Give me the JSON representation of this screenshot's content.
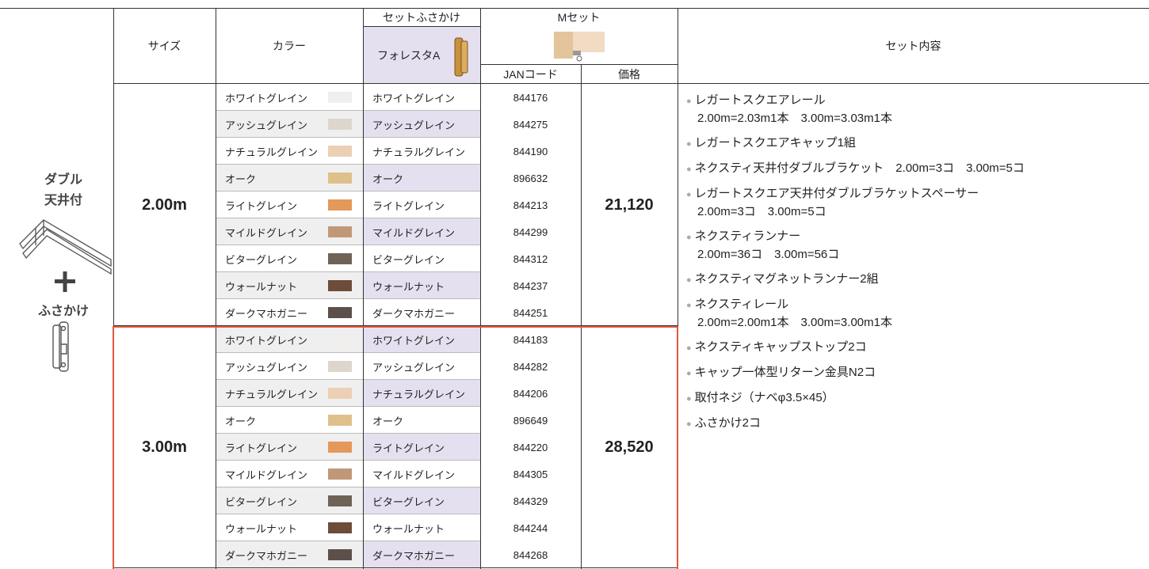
{
  "side": {
    "line1": "ダブル",
    "line2": "天井付",
    "accessory": "ふさかけ"
  },
  "table": {
    "headers": {
      "size": "サイズ",
      "color": "カラー",
      "set_fusakake": "セットふさかけ",
      "foresta": "フォレスタA",
      "m_set": "Mセット",
      "jan": "JANコード",
      "price": "価格",
      "contents": "セット内容"
    },
    "groups": [
      {
        "size": "2.00m",
        "price": "21,120",
        "rows": [
          {
            "color": "ホワイトグレイン",
            "fusakake": "ホワイトグレイン",
            "jan": "844176"
          },
          {
            "color": "アッシュグレイン",
            "fusakake": "アッシュグレイン",
            "jan": "844275"
          },
          {
            "color": "ナチュラルグレイン",
            "fusakake": "ナチュラルグレイン",
            "jan": "844190"
          },
          {
            "color": "オーク",
            "fusakake": "オーク",
            "jan": "896632"
          },
          {
            "color": "ライトグレイン",
            "fusakake": "ライトグレイン",
            "jan": "844213"
          },
          {
            "color": "マイルドグレイン",
            "fusakake": "マイルドグレイン",
            "jan": "844299"
          },
          {
            "color": "ビターグレイン",
            "fusakake": "ビターグレイン",
            "jan": "844312"
          },
          {
            "color": "ウォールナット",
            "fusakake": "ウォールナット",
            "jan": "844237"
          },
          {
            "color": "ダークマホガニー",
            "fusakake": "ダークマホガニー",
            "jan": "844251"
          }
        ]
      },
      {
        "size": "3.00m",
        "price": "28,520",
        "rows": [
          {
            "color": "ホワイトグレイン",
            "fusakake": "ホワイトグレイン",
            "jan": "844183"
          },
          {
            "color": "アッシュグレイン",
            "fusakake": "アッシュグレイン",
            "jan": "844282"
          },
          {
            "color": "ナチュラルグレイン",
            "fusakake": "ナチュラルグレイン",
            "jan": "844206"
          },
          {
            "color": "オーク",
            "fusakake": "オーク",
            "jan": "896649"
          },
          {
            "color": "ライトグレイン",
            "fusakake": "ライトグレイン",
            "jan": "844220"
          },
          {
            "color": "マイルドグレイン",
            "fusakake": "マイルドグレイン",
            "jan": "844305"
          },
          {
            "color": "ビターグレイン",
            "fusakake": "ビターグレイン",
            "jan": "844329"
          },
          {
            "color": "ウォールナット",
            "fusakake": "ウォールナット",
            "jan": "844244"
          },
          {
            "color": "ダークマホガニー",
            "fusakake": "ダークマホガニー",
            "jan": "844268"
          }
        ]
      }
    ],
    "contents": [
      {
        "item": "レガートスクエアレール",
        "detail": "2.00m=2.03m1本　3.00m=3.03m1本"
      },
      {
        "item": "レガートスクエアキャップ1組"
      },
      {
        "item": "ネクスティ天井付ダブルブラケット　2.00m=3コ　3.00m=5コ"
      },
      {
        "item": "レガートスクエア天井付ダブルブラケットスペーサー",
        "detail": "2.00m=3コ　3.00m=5コ"
      },
      {
        "item": "ネクスティランナー",
        "detail": "2.00m=36コ　3.00m=56コ"
      },
      {
        "item": "ネクスティマグネットランナー2組"
      },
      {
        "item": "ネクスティレール",
        "detail": "2.00m=2.00m1本　3.00m=3.00m1本"
      },
      {
        "item": "ネクスティキャップストップ2コ"
      },
      {
        "item": "キャップ一体型リターン金具N2コ"
      },
      {
        "item": "取付ネジ（ナベφ3.5×45）"
      },
      {
        "item": "ふさかけ2コ"
      }
    ]
  }
}
